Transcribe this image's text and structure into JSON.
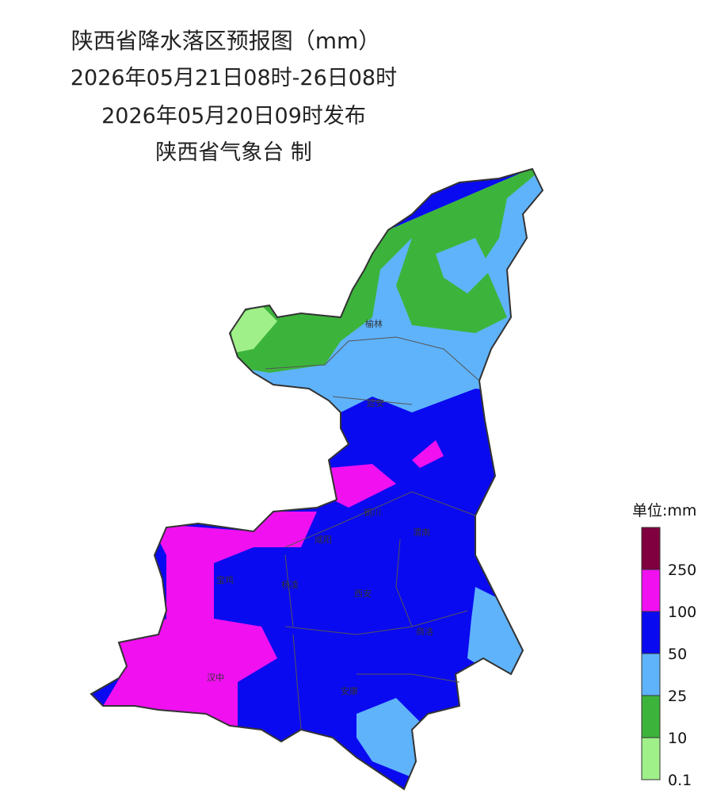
{
  "header": {
    "title": "陕西省降水落区预报图（mm）",
    "period": "2026年05月21日08时-26日08时",
    "issued": "2026年05月20日09时发布",
    "issuer": "陕西省气象台 制"
  },
  "cities": [
    "榆林",
    "延安",
    "铜川",
    "咸阳",
    "渭南",
    "宝鸡",
    "杨凌",
    "西安",
    "商洛",
    "汉中",
    "安康"
  ],
  "legend": {
    "unit": "单位:mm",
    "colors": [
      "#80003f",
      "#f010f0",
      "#0a0af0",
      "#5fb3fb",
      "#3cb43c",
      "#a0f08a"
    ],
    "ticks": [
      250,
      100,
      50,
      25,
      10,
      0.1
    ]
  }
}
